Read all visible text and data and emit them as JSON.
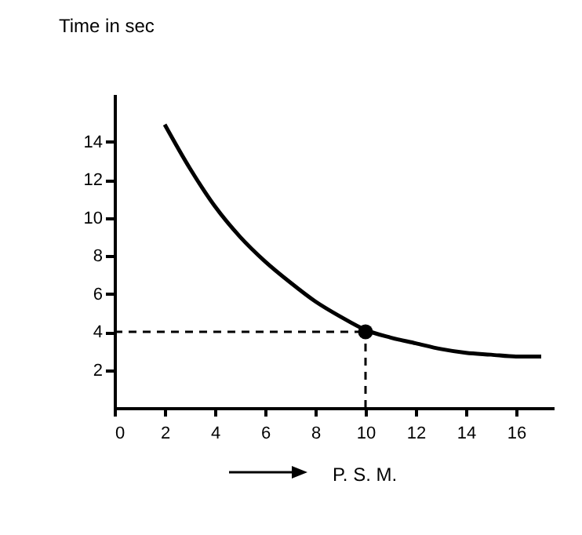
{
  "chart_data": {
    "type": "line",
    "ylabel": "Time in sec",
    "xlabel": "P. S. M.",
    "xlim": [
      0,
      17.5
    ],
    "ylim": [
      0,
      16.5
    ],
    "xticks": [
      0,
      2,
      4,
      6,
      8,
      10,
      12,
      14,
      16
    ],
    "yticks": [
      2,
      4,
      6,
      8,
      10,
      12,
      14
    ],
    "grid": false,
    "series": [
      {
        "color": "#000000",
        "x": [
          2,
          3,
          4,
          5,
          6,
          7,
          8,
          9,
          10,
          11,
          12,
          13,
          14,
          15,
          16,
          17
        ],
        "values": [
          14.9,
          12.6,
          10.6,
          9.0,
          7.7,
          6.6,
          5.6,
          4.8,
          4.1,
          3.7,
          3.4,
          3.1,
          2.9,
          2.8,
          2.7,
          2.7
        ],
        "marker": "none"
      },
      {
        "type": "scatter",
        "color": "#000000",
        "x": [
          10
        ],
        "values": [
          4
        ],
        "marker": "circle"
      }
    ],
    "ref_lines": [
      {
        "axis": "x",
        "value": 10,
        "color": "#000000",
        "line_style": "dashed"
      },
      {
        "axis": "y",
        "value": 4,
        "color": "#000000",
        "line_style": "dashed"
      }
    ]
  }
}
